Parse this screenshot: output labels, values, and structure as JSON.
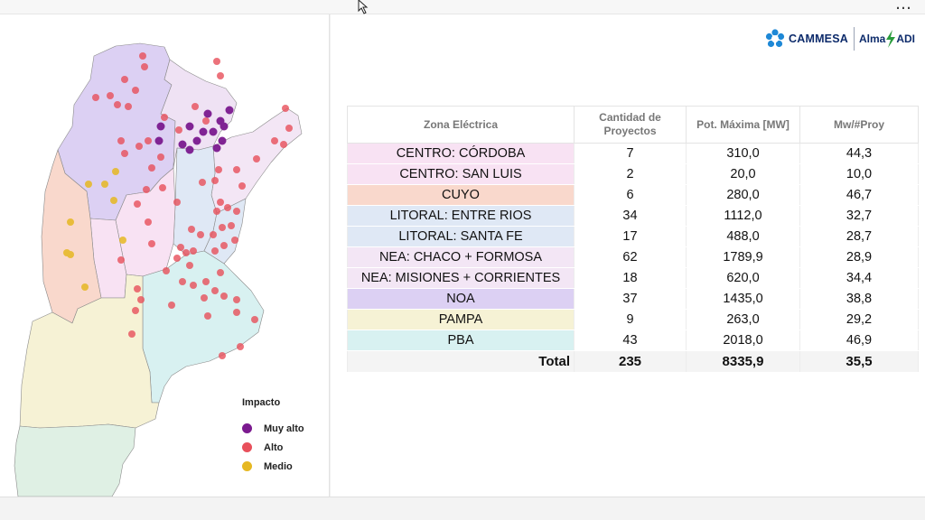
{
  "legend": {
    "title": "Impacto",
    "items": [
      {
        "label": "Muy alto",
        "color": "#7b1a8f"
      },
      {
        "label": "Alto",
        "color": "#e8505b"
      },
      {
        "label": "Medio",
        "color": "#e6b822"
      }
    ]
  },
  "logo": {
    "name": "CAMMESA",
    "alma": "Alma",
    "adi": "ADI"
  },
  "table": {
    "headers": [
      "Zona Eléctrica",
      "Cantidad de Proyectos",
      "Pot. Máxima [MW]",
      "Mw/#Proy"
    ],
    "rows": [
      {
        "zone": "CENTRO: CÓRDOBA",
        "count": "7",
        "pot": "310,0",
        "ratio": "44,3",
        "color": "#f8e2f3"
      },
      {
        "zone": "CENTRO: SAN LUIS",
        "count": "2",
        "pot": "20,0",
        "ratio": "10,0",
        "color": "#f8e2f3"
      },
      {
        "zone": "CUYO",
        "count": "6",
        "pot": "280,0",
        "ratio": "46,7",
        "color": "#f9d8cc"
      },
      {
        "zone": "LITORAL: ENTRE RIOS",
        "count": "34",
        "pot": "1112,0",
        "ratio": "32,7",
        "color": "#dfe8f5"
      },
      {
        "zone": "LITORAL: SANTA FE",
        "count": "17",
        "pot": "488,0",
        "ratio": "28,7",
        "color": "#dfe8f5"
      },
      {
        "zone": "NEA: CHACO + FORMOSA",
        "count": "62",
        "pot": "1789,9",
        "ratio": "28,9",
        "color": "#f3e6f5"
      },
      {
        "zone": "NEA: MISIONES + CORRIENTES",
        "count": "18",
        "pot": "620,0",
        "ratio": "34,4",
        "color": "#f3e6f5"
      },
      {
        "zone": "NOA",
        "count": "37",
        "pot": "1435,0",
        "ratio": "38,8",
        "color": "#dcd0f3"
      },
      {
        "zone": "PAMPA",
        "count": "9",
        "pot": "263,0",
        "ratio": "29,2",
        "color": "#f6f2d5"
      },
      {
        "zone": "PBA",
        "count": "43",
        "pot": "2018,0",
        "ratio": "46,9",
        "color": "#d8f1f1"
      }
    ],
    "total": {
      "label": "Total",
      "count": "235",
      "pot": "8335,9",
      "ratio": "35,5"
    }
  }
}
